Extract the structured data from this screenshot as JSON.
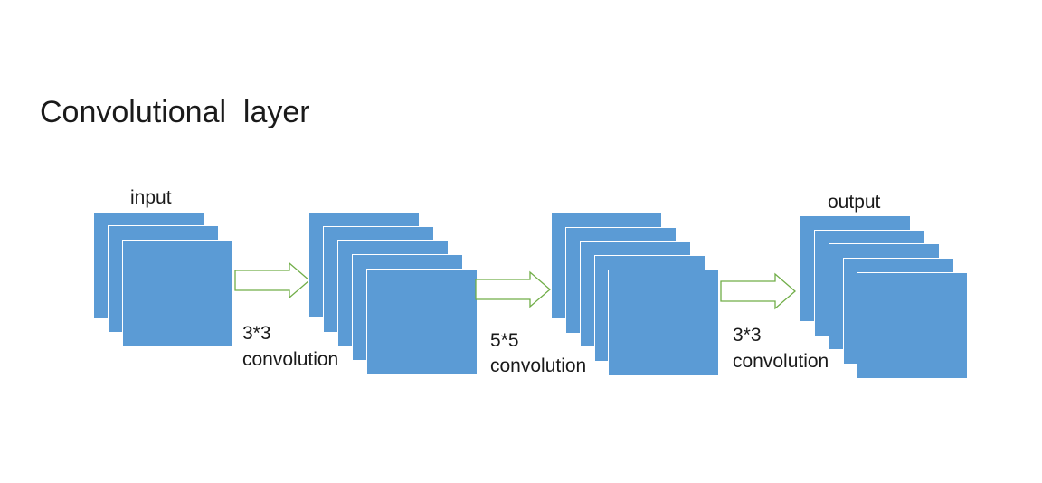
{
  "title": "Convolutional  layer",
  "stacks": [
    {
      "label": "input"
    },
    {
      "label": ""
    },
    {
      "label": ""
    },
    {
      "label": "output"
    }
  ],
  "steps": [
    {
      "kernel": "3*3",
      "operation": "convolution"
    },
    {
      "kernel": "5*5",
      "operation": "convolution"
    },
    {
      "kernel": "3*3",
      "operation": "convolution"
    }
  ],
  "colors": {
    "feature_map": "#5b9bd5",
    "arrow_fill": "#ffffff",
    "arrow_stroke": "#70ad47"
  }
}
